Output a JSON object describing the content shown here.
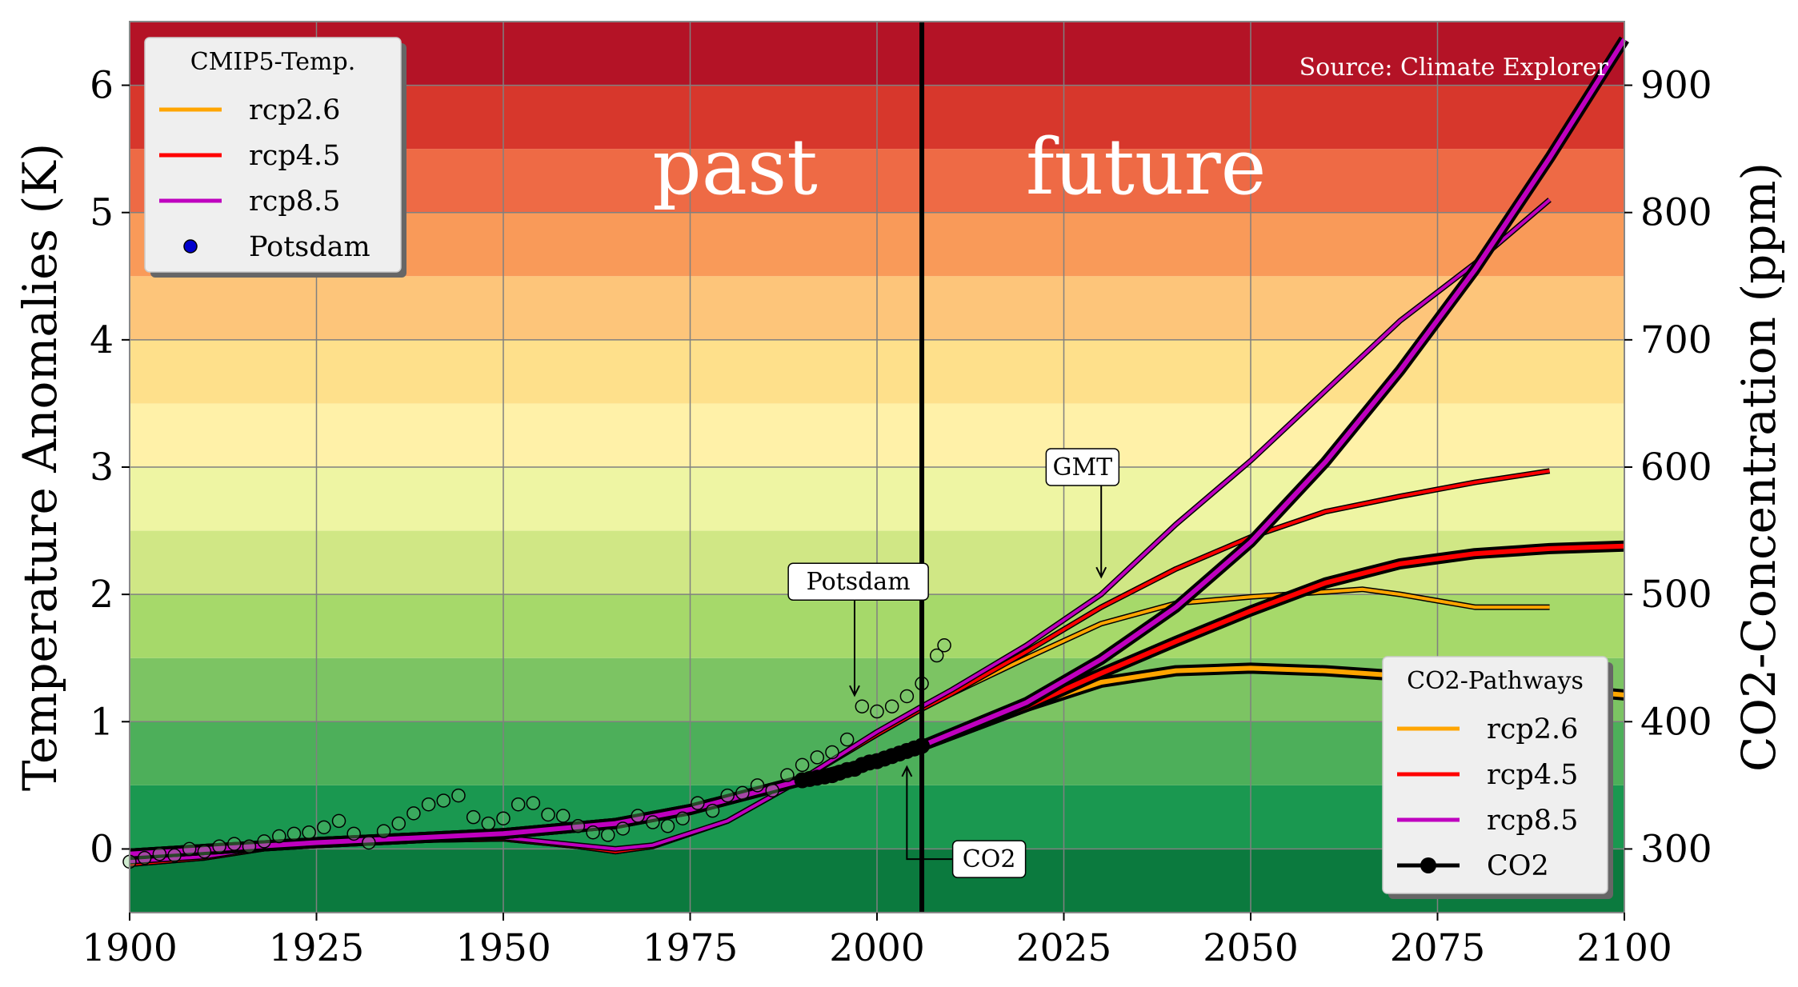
{
  "chart_data": {
    "type": "line",
    "xlabel": "",
    "ylabel": "Temperature Anomalies (K)",
    "y2label": "CO2-Concentration (ppm)",
    "xlim": [
      1900,
      2100
    ],
    "ylim": [
      -0.5,
      6.5
    ],
    "y2lim": [
      250,
      950
    ],
    "x_ticks": [
      "1900",
      "1925",
      "1950",
      "1975",
      "2000",
      "2025",
      "2050",
      "2075",
      "2100"
    ],
    "y_ticks": [
      "0",
      "1",
      "2",
      "3",
      "4",
      "5",
      "6"
    ],
    "y2_ticks": [
      "300",
      "400",
      "500",
      "600",
      "700",
      "800",
      "900"
    ],
    "grid": true,
    "divider_year": 2006,
    "labels": {
      "past": "past",
      "future": "future",
      "source": "Source: Climate Explorer"
    },
    "background_bands": [
      {
        "from": -0.5,
        "to": 0.0,
        "color": "#0b7a3e"
      },
      {
        "from": 0.0,
        "to": 0.5,
        "color": "#1a9850"
      },
      {
        "from": 0.5,
        "to": 1.0,
        "color": "#4daf5a"
      },
      {
        "from": 1.0,
        "to": 1.5,
        "color": "#7cc463"
      },
      {
        "from": 1.5,
        "to": 2.0,
        "color": "#a6d96a"
      },
      {
        "from": 2.0,
        "to": 2.5,
        "color": "#d0e785"
      },
      {
        "from": 2.5,
        "to": 3.0,
        "color": "#eef5a3"
      },
      {
        "from": 3.0,
        "to": 3.5,
        "color": "#fff1a8"
      },
      {
        "from": 3.5,
        "to": 4.0,
        "color": "#fee08b"
      },
      {
        "from": 4.0,
        "to": 4.5,
        "color": "#fdc57a"
      },
      {
        "from": 4.5,
        "to": 5.0,
        "color": "#f99a59"
      },
      {
        "from": 5.0,
        "to": 5.5,
        "color": "#ee6a45"
      },
      {
        "from": 5.5,
        "to": 6.0,
        "color": "#d7372c"
      },
      {
        "from": 6.0,
        "to": 6.5,
        "color": "#b41326"
      }
    ],
    "temp_legend": {
      "title": "CMIP5-Temp.",
      "items": [
        {
          "label": "rcp2.6",
          "color": "#ffa500"
        },
        {
          "label": "rcp4.5",
          "color": "#ff0000"
        },
        {
          "label": "rcp8.5",
          "color": "#bf00bf"
        },
        {
          "label": "Potsdam",
          "color": "#0000cd"
        }
      ]
    },
    "co2_legend": {
      "title": "CO2-Pathways",
      "items": [
        {
          "label": "rcp2.6",
          "color": "#ffa500"
        },
        {
          "label": "rcp4.5",
          "color": "#ff0000"
        },
        {
          "label": "rcp8.5",
          "color": "#bf00bf"
        },
        {
          "label": "CO2",
          "color": "#000000"
        }
      ]
    },
    "temperature_series": [
      {
        "name": "rcp2.6",
        "color": "#ffa500",
        "years": [
          1900,
          1910,
          1920,
          1930,
          1940,
          1950,
          1960,
          1965,
          1970,
          1980,
          1990,
          2000,
          2006,
          2010,
          2020,
          2030,
          2040,
          2050,
          2060,
          2065,
          2070,
          2080,
          2090
        ],
        "values": [
          -0.12,
          -0.07,
          0.02,
          0.07,
          0.07,
          0.08,
          0.02,
          -0.02,
          0.02,
          0.22,
          0.55,
          0.9,
          1.1,
          1.22,
          1.5,
          1.77,
          1.93,
          1.98,
          2.02,
          2.04,
          2.0,
          1.9,
          1.9
        ]
      },
      {
        "name": "rcp4.5",
        "color": "#ff0000",
        "years": [
          1900,
          1910,
          1920,
          1930,
          1940,
          1950,
          1960,
          1965,
          1970,
          1980,
          1990,
          2000,
          2006,
          2010,
          2020,
          2030,
          2040,
          2050,
          2060,
          2070,
          2080,
          2090
        ],
        "values": [
          -0.12,
          -0.07,
          0.02,
          0.07,
          0.07,
          0.08,
          0.02,
          -0.02,
          0.02,
          0.22,
          0.55,
          0.9,
          1.1,
          1.22,
          1.55,
          1.9,
          2.2,
          2.45,
          2.65,
          2.77,
          2.88,
          2.97
        ]
      },
      {
        "name": "rcp8.5",
        "color": "#bf00bf",
        "years": [
          1900,
          1910,
          1920,
          1930,
          1940,
          1950,
          1960,
          1965,
          1970,
          1980,
          1990,
          2000,
          2006,
          2010,
          2020,
          2030,
          2040,
          2050,
          2060,
          2070,
          2080,
          2090
        ],
        "values": [
          -0.1,
          -0.06,
          0.03,
          0.08,
          0.08,
          0.09,
          0.03,
          0.0,
          0.03,
          0.22,
          0.55,
          0.92,
          1.12,
          1.25,
          1.6,
          2.0,
          2.55,
          3.05,
          3.6,
          4.15,
          4.6,
          5.1
        ]
      }
    ],
    "co2_series": [
      {
        "name": "rcp2.6",
        "color": "#ffa500",
        "years": [
          1900,
          1925,
          1950,
          1965,
          1975,
          1990,
          2000,
          2006,
          2020,
          2030,
          2040,
          2050,
          2060,
          2070,
          2080,
          2090,
          2100
        ],
        "values": [
          296,
          305,
          312,
          320,
          331,
          354,
          369,
          381,
          412,
          431,
          440,
          442,
          440,
          436,
          431,
          426,
          421
        ]
      },
      {
        "name": "rcp4.5",
        "color": "#ff0000",
        "years": [
          1900,
          1925,
          1950,
          1965,
          1975,
          1990,
          2000,
          2006,
          2020,
          2030,
          2040,
          2050,
          2060,
          2070,
          2080,
          2090,
          2100
        ],
        "values": [
          296,
          305,
          312,
          320,
          331,
          354,
          369,
          381,
          412,
          438,
          463,
          487,
          509,
          524,
          532,
          536,
          538
        ]
      },
      {
        "name": "rcp8.5",
        "color": "#bf00bf",
        "years": [
          1900,
          1925,
          1950,
          1965,
          1975,
          1990,
          2000,
          2006,
          2020,
          2030,
          2040,
          2050,
          2060,
          2070,
          2080,
          2090,
          2100
        ],
        "values": [
          296,
          305,
          312,
          320,
          331,
          354,
          369,
          381,
          415,
          449,
          490,
          541,
          604,
          676,
          755,
          843,
          936
        ]
      }
    ],
    "co2_observed": {
      "name": "CO2",
      "years": [
        1990,
        1991,
        1992,
        1993,
        1994,
        1995,
        1996,
        1997,
        1998,
        1999,
        2000,
        2001,
        2002,
        2003,
        2004,
        2005,
        2006
      ],
      "values": [
        354,
        355,
        356,
        357,
        358,
        360,
        362,
        363,
        366,
        368,
        369,
        371,
        373,
        375,
        377,
        379,
        381
      ]
    },
    "potsdam_observed": {
      "name": "Potsdam",
      "years": [
        1900,
        1902,
        1904,
        1906,
        1908,
        1910,
        1912,
        1914,
        1916,
        1918,
        1920,
        1922,
        1924,
        1926,
        1928,
        1930,
        1932,
        1934,
        1936,
        1938,
        1940,
        1942,
        1944,
        1946,
        1948,
        1950,
        1952,
        1954,
        1956,
        1958,
        1960,
        1962,
        1964,
        1966,
        1968,
        1970,
        1972,
        1974,
        1976,
        1978,
        1980,
        1982,
        1984,
        1986,
        1988,
        1990,
        1992,
        1994,
        1996,
        1998,
        2000,
        2002,
        2004,
        2006,
        2008,
        2009
      ],
      "values": [
        -0.1,
        -0.07,
        -0.04,
        -0.05,
        0.0,
        -0.02,
        0.02,
        0.04,
        0.02,
        0.06,
        0.1,
        0.12,
        0.13,
        0.17,
        0.22,
        0.12,
        0.05,
        0.14,
        0.2,
        0.28,
        0.35,
        0.38,
        0.42,
        0.25,
        0.2,
        0.24,
        0.35,
        0.36,
        0.27,
        0.26,
        0.18,
        0.13,
        0.11,
        0.16,
        0.26,
        0.21,
        0.18,
        0.24,
        0.36,
        0.3,
        0.42,
        0.44,
        0.5,
        0.46,
        0.58,
        0.66,
        0.72,
        0.76,
        0.86,
        1.12,
        1.08,
        1.12,
        1.2,
        1.3,
        1.52,
        1.6
      ]
    },
    "annotations": [
      {
        "text": "Potsdam",
        "target_year": 1997,
        "target_value": 1.17,
        "label_year": 1997.5,
        "label_value": 2.1
      },
      {
        "text": "GMT",
        "target_year": 2030,
        "target_value": 2.1,
        "label_year": 2027.5,
        "label_value": 3.0
      },
      {
        "text": "CO2",
        "target_year": 2004,
        "target_value": 0.72,
        "label_year": 2015,
        "label_value": -0.08
      }
    ]
  }
}
